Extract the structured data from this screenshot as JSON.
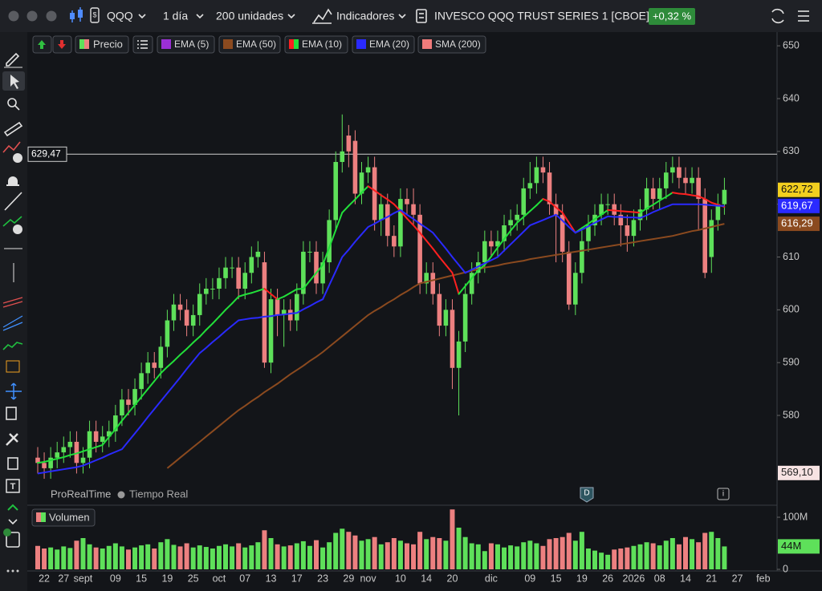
{
  "toolbar": {
    "symbol": "QQQ",
    "period": "1 día",
    "units": "200 unidades",
    "indicators": "Indicadores",
    "instrument": "INVESCO QQQ TRUST SERIES 1 [CBOE]",
    "change": "+0,32 %"
  },
  "watermark": {
    "brand": "ProRealTime",
    "mode": "Tiempo Real"
  },
  "markers": [
    "D",
    "i"
  ],
  "chart_data": [
    {
      "type": "candlestick",
      "price_label": "Precio",
      "up_color": "#5ee05a",
      "down_color": "#ec8080",
      "categories": [
        null,
        "22",
        null,
        null,
        "27",
        null,
        null,
        "sept",
        null,
        null,
        null,
        null,
        "09",
        null,
        null,
        null,
        "15",
        null,
        null,
        null,
        "19",
        null,
        null,
        null,
        "25",
        null,
        null,
        null,
        "oct",
        null,
        null,
        null,
        "07",
        null,
        null,
        null,
        "13",
        null,
        null,
        null,
        "17",
        null,
        null,
        null,
        "23",
        null,
        null,
        null,
        "29",
        null,
        null,
        "nov",
        null,
        null,
        null,
        null,
        "10",
        null,
        null,
        null,
        "14",
        null,
        null,
        null,
        "20",
        null,
        null,
        null,
        null,
        null,
        "dic",
        null,
        null,
        null,
        null,
        null,
        "09",
        null,
        null,
        null,
        "15",
        null,
        null,
        null,
        "19",
        null,
        null,
        null,
        "26",
        null,
        null,
        null,
        "2026",
        null,
        null,
        null,
        "08",
        null,
        null,
        null,
        "14",
        null,
        null,
        null,
        "21",
        null,
        null,
        null,
        "27",
        null,
        null,
        null,
        "feb"
      ],
      "open": [
        572,
        571,
        570,
        572,
        573,
        574,
        575,
        571,
        572,
        577,
        575,
        576,
        577,
        580,
        583,
        582,
        585,
        588,
        590,
        589,
        593,
        598,
        601,
        600,
        597,
        599,
        603,
        604,
        604,
        606,
        608,
        608,
        604,
        607,
        610,
        609,
        590,
        602,
        599,
        600,
        598,
        603,
        611,
        611,
        605,
        609,
        617,
        628,
        633,
        632,
        622,
        626,
        627,
        617,
        620,
        614,
        612,
        621,
        620,
        618,
        605,
        607,
        603,
        597,
        600,
        589,
        594,
        603,
        607,
        609,
        613,
        612,
        613,
        616,
        617,
        618,
        623,
        624,
        627,
        626,
        620,
        618,
        611,
        601,
        607,
        613,
        616,
        618,
        620,
        620,
        618,
        616,
        614,
        617,
        619,
        623,
        621,
        623,
        626,
        627,
        625,
        624,
        625,
        621,
        610,
        617,
        620,
        null,
        null,
        null,
        null,
        null,
        null
      ],
      "high": [
        574,
        573,
        574,
        575,
        576,
        577,
        577,
        574,
        579,
        579,
        578,
        579,
        582,
        585,
        585,
        587,
        590,
        592,
        592,
        595,
        600,
        603,
        603,
        602,
        601,
        605,
        606,
        606,
        608,
        610,
        610,
        610,
        609,
        612,
        613,
        611,
        604,
        604,
        602,
        602,
        605,
        613,
        613,
        613,
        611,
        619,
        630,
        637,
        635,
        634,
        628,
        629,
        629,
        622,
        622,
        616,
        623,
        623,
        623,
        620,
        609,
        609,
        605,
        602,
        602,
        596,
        605,
        609,
        611,
        615,
        615,
        615,
        618,
        619,
        620,
        625,
        628,
        629,
        629,
        628,
        622,
        620,
        613,
        609,
        615,
        618,
        620,
        622,
        622,
        622,
        620,
        618,
        619,
        621,
        625,
        625,
        625,
        628,
        629,
        629,
        627,
        627,
        627,
        623,
        619,
        622,
        625,
        null,
        null,
        null,
        null,
        null,
        null
      ],
      "low": [
        569,
        568,
        568,
        570,
        571,
        572,
        569,
        569,
        570,
        573,
        573,
        574,
        575,
        578,
        580,
        580,
        583,
        586,
        587,
        587,
        591,
        596,
        598,
        595,
        595,
        597,
        601,
        602,
        602,
        604,
        606,
        602,
        602,
        605,
        608,
        589,
        588,
        595,
        593,
        596,
        596,
        601,
        609,
        603,
        603,
        607,
        615,
        626,
        627,
        620,
        620,
        624,
        615,
        614,
        612,
        610,
        610,
        618,
        616,
        603,
        603,
        601,
        595,
        595,
        585,
        580,
        592,
        601,
        605,
        607,
        610,
        610,
        611,
        614,
        615,
        616,
        621,
        622,
        624,
        618,
        609,
        609,
        600,
        599,
        605,
        611,
        614,
        616,
        618,
        616,
        612,
        611,
        612,
        615,
        617,
        619,
        619,
        621,
        624,
        623,
        622,
        622,
        615,
        606,
        607,
        615,
        618,
        null,
        null,
        null,
        null,
        null,
        null
      ],
      "close": [
        571,
        570,
        572,
        573,
        574,
        575,
        571,
        572,
        577,
        575,
        576,
        577,
        580,
        583,
        582,
        585,
        588,
        590,
        589,
        593,
        598,
        601,
        600,
        597,
        599,
        603,
        604,
        604,
        606,
        608,
        608,
        604,
        607,
        610,
        611,
        590,
        602,
        599,
        600,
        598,
        603,
        611,
        611,
        605,
        609,
        617,
        628,
        630,
        630,
        622,
        626,
        627,
        617,
        620,
        614,
        612,
        621,
        620,
        618,
        605,
        607,
        603,
        597,
        600,
        589,
        594,
        603,
        607,
        609,
        613,
        612,
        613,
        616,
        617,
        618,
        623,
        624,
        627,
        626,
        620,
        618,
        611,
        601,
        607,
        613,
        616,
        618,
        620,
        620,
        618,
        616,
        614,
        617,
        619,
        623,
        621,
        623,
        626,
        627,
        625,
        624,
        625,
        621,
        607,
        617,
        620,
        622.72,
        null,
        null,
        null,
        null,
        null,
        null
      ],
      "series": [
        {
          "name": "EMA (50)",
          "color": "#8b4a1f",
          "values": [
            null,
            null,
            null,
            null,
            null,
            null,
            null,
            null,
            null,
            null,
            null,
            null,
            null,
            null,
            null,
            null,
            null,
            null,
            null,
            null,
            570,
            571,
            572,
            573,
            574,
            575,
            576,
            577,
            578,
            579,
            580,
            581,
            581.8,
            582.7,
            583.5,
            584.4,
            585.2,
            586,
            586.9,
            587.8,
            588.6,
            589.4,
            590.3,
            591.1,
            592,
            593,
            594,
            595,
            596,
            597,
            598,
            599,
            599.8,
            600.5,
            601.3,
            602,
            602.8,
            603.5,
            604.3,
            605,
            605.3,
            605.6,
            605.9,
            606.2,
            606.5,
            606.8,
            607.1,
            607.4,
            607.7,
            608,
            608.2,
            608.4,
            608.7,
            608.9,
            609.1,
            609.3,
            609.6,
            609.8,
            610,
            610.2,
            610.4,
            610.6,
            610.8,
            611,
            611.2,
            611.4,
            611.6,
            611.8,
            612,
            612.2,
            612.4,
            612.6,
            612.8,
            613,
            613.2,
            613.4,
            613.6,
            613.8,
            614,
            614.3,
            614.6,
            614.9,
            615.1,
            615.4,
            615.7,
            616,
            616.29,
            null,
            null,
            null,
            null,
            null,
            null
          ]
        },
        {
          "name": "EMA (10)",
          "color": "#22e03a",
          "down_color": "#ff2020",
          "values": [
            571,
            571.2,
            571.5,
            571.8,
            572.1,
            572.5,
            572.8,
            573.2,
            573.6,
            574,
            574.4,
            575.9,
            577.4,
            579,
            580.5,
            582,
            583.5,
            585,
            586.5,
            588,
            589.2,
            590.3,
            591.5,
            592.6,
            593.8,
            594.9,
            596.2,
            597.4,
            598.7,
            600,
            601.2,
            602.5,
            602.9,
            603.2,
            603.6,
            604,
            603,
            602,
            602.5,
            603.2,
            603.9,
            604,
            605.5,
            607,
            608.5,
            611.8,
            615.1,
            618.4,
            619.7,
            620.9,
            622.2,
            623.4,
            622.6,
            621.7,
            620.9,
            620,
            618.7,
            617.3,
            616,
            614.6,
            613.1,
            611.6,
            610,
            608.5,
            607,
            603,
            604.5,
            606,
            607.5,
            608.5,
            610.1,
            611.8,
            613.4,
            615,
            616.5,
            617.6,
            618.7,
            619.8,
            621,
            620.5,
            619.4,
            618.4,
            616.5,
            614.6,
            615.5,
            616.3,
            617.2,
            618,
            618.9,
            618.8,
            618.7,
            618.6,
            618.5,
            618.4,
            619.2,
            619.9,
            620.7,
            621.4,
            622.2,
            622,
            621.9,
            621.7,
            621.5,
            621,
            620.3,
            619.9,
            619.5,
            null,
            null,
            null,
            null,
            null,
            null
          ]
        },
        {
          "name": "EMA (20)",
          "color": "#2a2aff",
          "values": [
            569,
            569.2,
            569.4,
            569.6,
            569.8,
            570,
            570.2,
            570.5,
            571,
            571.5,
            572,
            572.6,
            573.1,
            573.6,
            575.1,
            576.6,
            578.1,
            579.7,
            581.2,
            582.7,
            584.2,
            585.7,
            587.2,
            588.8,
            590.3,
            591.8,
            592.8,
            593.9,
            594.9,
            596,
            597,
            598,
            598.2,
            598.4,
            598.5,
            598.7,
            598.8,
            599,
            599.1,
            599.3,
            599.4,
            600.1,
            600.7,
            601.4,
            602,
            604.7,
            607.3,
            610,
            611.4,
            612.9,
            614.3,
            615.7,
            616.3,
            617,
            617.6,
            618.3,
            618.9,
            618,
            617.2,
            616.3,
            615.5,
            614.6,
            613.1,
            611.6,
            610,
            608.5,
            607,
            607.6,
            608.2,
            608.8,
            609.4,
            610,
            611.2,
            612.4,
            613.6,
            614.8,
            616,
            616.5,
            617,
            617.5,
            618,
            616.9,
            615.7,
            614.6,
            615.2,
            615.8,
            616.5,
            617.1,
            617.7,
            617.6,
            617.6,
            617.5,
            617.5,
            617.4,
            617.9,
            618.5,
            619,
            619.5,
            620,
            620,
            620,
            620,
            620,
            619.9,
            619.8,
            619.7,
            619.67,
            null,
            null,
            null,
            null,
            null,
            null
          ]
        }
      ],
      "indicators": [
        {
          "name": "EMA (5)",
          "color": "#9b2fd6"
        },
        {
          "name": "SMA (200)",
          "color": "#f07b7b"
        }
      ],
      "ylim": [
        563.3,
        652.6
      ],
      "yticks": [
        580,
        590,
        600,
        610,
        620,
        630,
        640,
        650
      ],
      "grid": false,
      "hline": {
        "value": 629.47,
        "label": "629,47"
      },
      "tags": [
        {
          "value": 622.72,
          "label": "622,72",
          "color": "#f2cf1f",
          "text_color": "#111111"
        },
        {
          "value": 619.67,
          "label": "619,67",
          "color": "#2a2aff",
          "text_color": "#ffffff"
        },
        {
          "value": 616.29,
          "label": "616,29",
          "color": "#8b4a1f",
          "text_color": "#ffffff"
        },
        {
          "value": 569.1,
          "label": "569,10",
          "color": "#f7e3e3",
          "text_color": "#222222"
        }
      ]
    },
    {
      "type": "bar",
      "title": "Volumen",
      "values": [
        45,
        40,
        42,
        38,
        44,
        41,
        55,
        60,
        48,
        42,
        40,
        45,
        50,
        44,
        38,
        42,
        46,
        48,
        40,
        52,
        58,
        47,
        44,
        50,
        42,
        46,
        43,
        40,
        45,
        48,
        44,
        50,
        42,
        46,
        52,
        75,
        60,
        48,
        44,
        46,
        50,
        54,
        45,
        56,
        42,
        52,
        70,
        78,
        72,
        65,
        55,
        58,
        62,
        48,
        52,
        60,
        55,
        50,
        48,
        72,
        58,
        62,
        60,
        55,
        115,
        80,
        62,
        50,
        48,
        35,
        50,
        48,
        42,
        46,
        44,
        52,
        55,
        50,
        45,
        58,
        60,
        62,
        70,
        55,
        72,
        40,
        36,
        32,
        28,
        38,
        40,
        42,
        45,
        48,
        52,
        50,
        46,
        55,
        60,
        48,
        62,
        58,
        52,
        70,
        72,
        60,
        44,
        null,
        null,
        null,
        null,
        null,
        null
      ],
      "ylim": [
        0,
        118.5
      ],
      "yticks": [
        {
          "value": 0,
          "label": "0"
        },
        {
          "value": 100,
          "label": "100M"
        }
      ],
      "tag": {
        "value": 44,
        "label": "44M",
        "color": "#5ee05a",
        "text_color": "#111111"
      }
    }
  ]
}
